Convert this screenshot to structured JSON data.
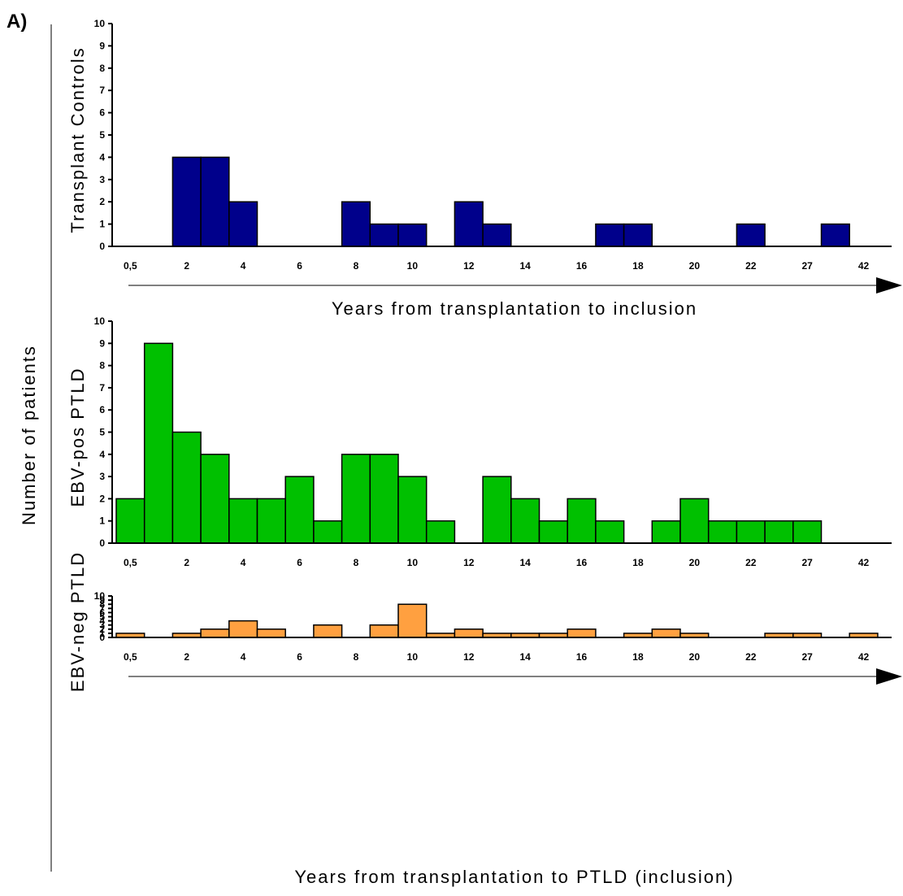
{
  "panel_label": "A)",
  "shared_ylabel": "Number of patients",
  "chart_data": [
    {
      "type": "bar",
      "ylabel": "Transplant Controls",
      "xlabel": "Years from transplantation to inclusion",
      "ylim": [
        0,
        10
      ],
      "yticks": [
        0,
        1,
        2,
        3,
        4,
        5,
        6,
        7,
        8,
        9,
        10
      ],
      "xtick_labels": [
        "0,5",
        "2",
        "4",
        "6",
        "8",
        "10",
        "12",
        "14",
        "16",
        "18",
        "20",
        "22",
        "27",
        "42"
      ],
      "values": [
        0,
        0,
        4,
        4,
        2,
        0,
        0,
        0,
        2,
        1,
        1,
        0,
        2,
        1,
        0,
        0,
        0,
        1,
        1,
        0,
        0,
        0,
        1,
        0,
        0,
        1,
        0,
        0
      ],
      "color": "#00008B",
      "arrow": true
    },
    {
      "type": "bar",
      "ylabel": "EBV-pos PTLD",
      "xlabel": "",
      "ylim": [
        0,
        10
      ],
      "yticks": [
        0,
        1,
        2,
        3,
        4,
        5,
        6,
        7,
        8,
        9,
        10
      ],
      "xtick_labels": [
        "0,5",
        "2",
        "4",
        "6",
        "8",
        "10",
        "12",
        "14",
        "16",
        "18",
        "20",
        "22",
        "27",
        "42"
      ],
      "values": [
        2,
        9,
        5,
        4,
        2,
        2,
        3,
        1,
        4,
        4,
        3,
        1,
        0,
        3,
        2,
        1,
        2,
        1,
        0,
        1,
        2,
        1,
        1,
        1,
        1,
        0,
        0,
        0
      ],
      "color": "#00C000",
      "arrow": false
    },
    {
      "type": "bar",
      "ylabel": "EBV-neg PTLD",
      "xlabel": "Years from transplantation to PTLD (inclusion)",
      "ylim": [
        0,
        10
      ],
      "yticks": [
        0,
        1,
        2,
        3,
        4,
        5,
        6,
        7,
        8,
        9,
        10
      ],
      "xtick_labels": [
        "0,5",
        "2",
        "4",
        "6",
        "8",
        "10",
        "12",
        "14",
        "16",
        "18",
        "20",
        "22",
        "27",
        "42"
      ],
      "values": [
        1,
        0,
        1,
        2,
        4,
        2,
        0,
        3,
        0,
        3,
        8,
        1,
        2,
        1,
        1,
        1,
        2,
        0,
        1,
        2,
        1,
        0,
        0,
        1,
        1,
        0,
        1,
        0
      ],
      "color": "#FFA040",
      "arrow": true
    }
  ]
}
